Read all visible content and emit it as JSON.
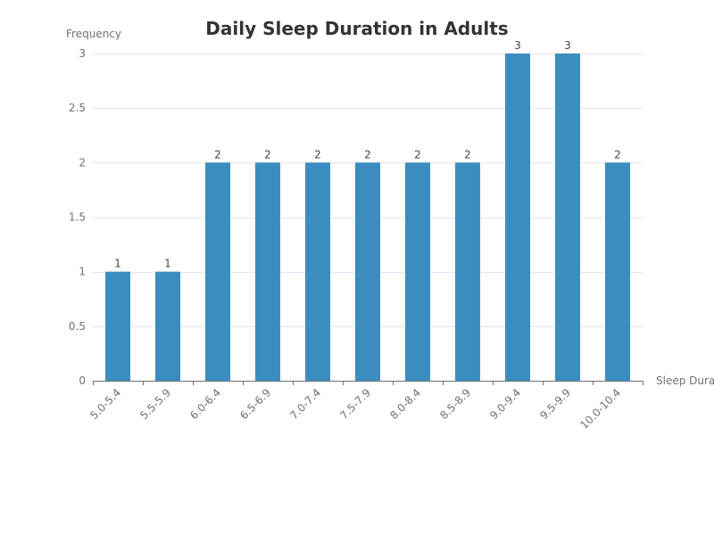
{
  "chart_data": {
    "type": "bar",
    "title": "Daily Sleep Duration in Adults",
    "xlabel": "Sleep Duration (hours)",
    "ylabel": "Frequency",
    "categories": [
      "5.0-5.4",
      "5.5-5.9",
      "6.0-6.4",
      "6.5-6.9",
      "7.0-7.4",
      "7.5-7.9",
      "8.0-8.4",
      "8.5-8.9",
      "9.0-9.4",
      "9.5-9.9",
      "10.0-10.4"
    ],
    "series": [
      {
        "values": [
          1,
          1,
          2,
          2,
          2,
          2,
          2,
          2,
          3,
          3,
          2
        ]
      }
    ],
    "ylim": [
      0,
      3
    ],
    "yticks": [
      "0",
      "0.5",
      "1",
      "1.5",
      "2",
      "2.5",
      "3"
    ],
    "show_data_labels": true,
    "grid": true,
    "bar_color": "#3c8dbf"
  }
}
